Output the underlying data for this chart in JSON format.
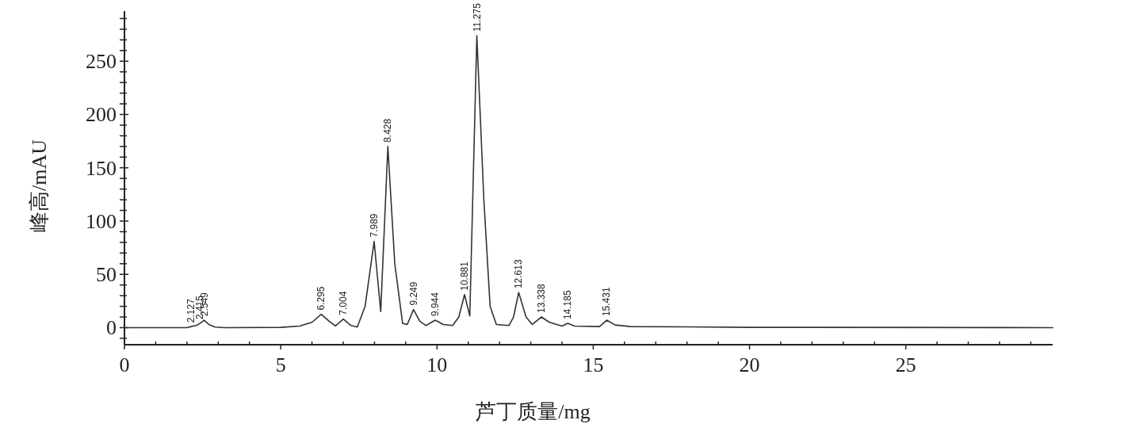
{
  "chart_data": {
    "type": "line",
    "xlabel": "芦丁质量/mg",
    "ylabel": "峰高/mAU",
    "xlim": [
      0,
      29.7
    ],
    "ylim": [
      -16,
      297
    ],
    "xticks": [
      0,
      {
        "value": 1,
        "label": null
      },
      {
        "value": 2,
        "label": null
      },
      {
        "value": 3,
        "label": null
      },
      {
        "value": 4,
        "label": null
      },
      5,
      {
        "value": 6,
        "label": null
      },
      {
        "value": 7,
        "label": null
      },
      {
        "value": 8,
        "label": null
      },
      {
        "value": 9,
        "label": null
      },
      10,
      {
        "value": 11,
        "label": null
      },
      {
        "value": 12,
        "label": null
      },
      {
        "value": 13,
        "label": null
      },
      {
        "value": 14,
        "label": null
      },
      15,
      {
        "value": 16,
        "label": null
      },
      {
        "value": 17,
        "label": null
      },
      {
        "value": 18,
        "label": null
      },
      {
        "value": 19,
        "label": null
      },
      20,
      {
        "value": 21,
        "label": null
      },
      {
        "value": 22,
        "label": null
      },
      {
        "value": 23,
        "label": null
      },
      {
        "value": 24,
        "label": null
      },
      25,
      {
        "value": 26,
        "label": null
      },
      {
        "value": 27,
        "label": null
      },
      {
        "value": 28,
        "label": null
      },
      {
        "value": 29,
        "label": null
      }
    ],
    "yticks": [
      {
        "value": -10,
        "label": null
      },
      0,
      {
        "value": 10,
        "label": null
      },
      {
        "value": 20,
        "label": null
      },
      {
        "value": 30,
        "label": null
      },
      {
        "value": 40,
        "label": null
      },
      50,
      {
        "value": 60,
        "label": null
      },
      {
        "value": 70,
        "label": null
      },
      {
        "value": 80,
        "label": null
      },
      {
        "value": 90,
        "label": null
      },
      100,
      {
        "value": 110,
        "label": null
      },
      {
        "value": 120,
        "label": null
      },
      {
        "value": 130,
        "label": null
      },
      {
        "value": 140,
        "label": null
      },
      150,
      {
        "value": 160,
        "label": null
      },
      {
        "value": 170,
        "label": null
      },
      {
        "value": 180,
        "label": null
      },
      {
        "value": 190,
        "label": null
      },
      200,
      {
        "value": 210,
        "label": null
      },
      {
        "value": 220,
        "label": null
      },
      {
        "value": 230,
        "label": null
      },
      {
        "value": 240,
        "label": null
      },
      250,
      {
        "value": 260,
        "label": null
      },
      {
        "value": 270,
        "label": null
      },
      {
        "value": 280,
        "label": null
      },
      {
        "value": 290,
        "label": null
      }
    ],
    "grid": false,
    "marker": "none",
    "line_style": "solid",
    "series": [
      {
        "color": "#333333",
        "x": [
          0,
          2.0,
          2.127,
          2.3,
          2.415,
          2.549,
          2.7,
          2.9,
          3.2,
          5.0,
          5.6,
          6.0,
          6.295,
          6.55,
          6.75,
          7.004,
          7.25,
          7.45,
          7.7,
          7.989,
          8.2,
          8.428,
          8.65,
          8.9,
          9.05,
          9.249,
          9.45,
          9.65,
          9.944,
          10.2,
          10.5,
          10.7,
          10.881,
          11.05,
          11.275,
          11.5,
          11.7,
          11.9,
          12.3,
          12.45,
          12.613,
          12.85,
          13.05,
          13.338,
          13.6,
          14.0,
          14.185,
          14.4,
          15.2,
          15.431,
          15.7,
          16.2,
          18,
          20,
          29.7
        ],
        "values": [
          0,
          0,
          1,
          2,
          4,
          7,
          3,
          0.5,
          0,
          0.3,
          1.5,
          5,
          12.6,
          6,
          1.5,
          8,
          2,
          0.5,
          20,
          81,
          15,
          170,
          60,
          4,
          3,
          17,
          6,
          2,
          7,
          3,
          2,
          10,
          31,
          11,
          274,
          120,
          20,
          3,
          2,
          10,
          33,
          10,
          3,
          10,
          5,
          1.5,
          4,
          1.5,
          1,
          7,
          2.5,
          1,
          0.7,
          0.3,
          0
        ]
      }
    ],
    "annotations": [
      {
        "text": "2.127",
        "x": 2.127,
        "y": 1
      },
      {
        "text": "2.415",
        "x": 2.415,
        "y": 4
      },
      {
        "text": "2.549",
        "x": 2.549,
        "y": 7
      },
      {
        "text": "6.295",
        "x": 6.295,
        "y": 12.6
      },
      {
        "text": "7.004",
        "x": 7.004,
        "y": 8
      },
      {
        "text": "7.989",
        "x": 7.989,
        "y": 81
      },
      {
        "text": "8.428",
        "x": 8.428,
        "y": 170
      },
      {
        "text": "9.249",
        "x": 9.249,
        "y": 17
      },
      {
        "text": "9.944",
        "x": 9.944,
        "y": 7
      },
      {
        "text": "10.881",
        "x": 10.881,
        "y": 31
      },
      {
        "text": "11.275",
        "x": 11.275,
        "y": 274
      },
      {
        "text": "12.613",
        "x": 12.613,
        "y": 33
      },
      {
        "text": "13.338",
        "x": 13.338,
        "y": 10
      },
      {
        "text": "14.185",
        "x": 14.185,
        "y": 4
      },
      {
        "text": "15.431",
        "x": 15.431,
        "y": 7
      }
    ]
  }
}
